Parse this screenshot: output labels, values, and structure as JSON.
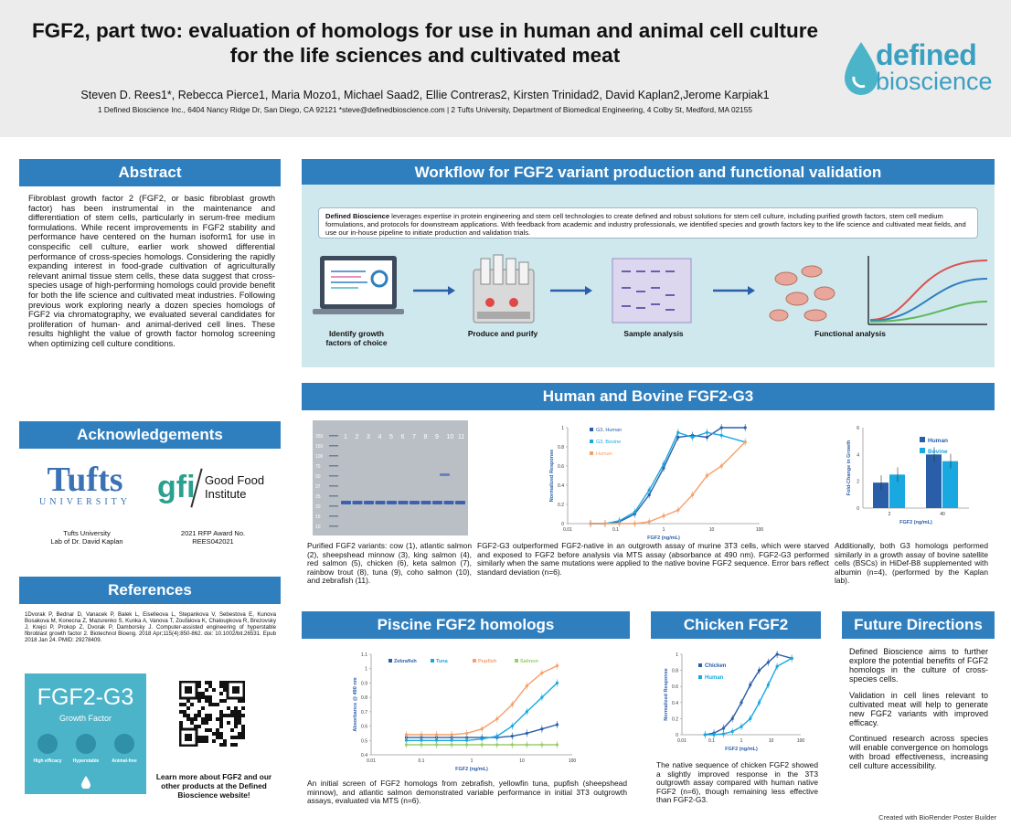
{
  "header": {
    "title": "FGF2, part two: evaluation of homologs for use in human and animal cell culture for the life sciences and cultivated meat",
    "authors": "Steven D. Rees1*, Rebecca Pierce1, Maria Mozo1, Michael Saad2, Ellie Contreras2, Kirsten Trinidad2, David Kaplan2,Jerome Karpiak1",
    "affiliations": "1 Defined Bioscience Inc., 6404 Nancy Ridge Dr, San Diego, CA 92121 *steve@definedbioscience.com   |   2 Tufts University, Department of Biomedical Engineering, 4 Colby St, Medford, MA 02155",
    "logo_line1": "defined",
    "logo_line2": "bioscience"
  },
  "abstract": {
    "heading": "Abstract",
    "text": "Fibroblast growth factor 2 (FGF2, or basic fibroblast growth factor) has been instrumental in the maintenance and differentiation of stem cells, particularly in serum-free medium formulations. While recent improvements in FGF2 stability and performance have centered on the human isoform1 for use in conspecific cell culture, earlier work showed differential performance of cross-species homologs. Considering the rapidly expanding interest in food-grade cultivation of agriculturally relevant animal tissue stem cells, these data suggest that cross-species usage of high-performing homologs could provide benefit for both the life science and cultivated meat industries. Following previous work exploring nearly a dozen species homologs of FGF2 via chromatography, we evaluated several candidates for proliferation of human- and animal-derived cell lines. These results highlight the value of growth factor homolog screening when optimizing cell culture conditions."
  },
  "acknowledgements": {
    "heading": "Acknowledgements",
    "tufts_logo": "Tufts",
    "tufts_sub": "UNIVERSITY",
    "tufts_caption": "Tufts University\nLab of Dr. David Kaplan",
    "gfi_logo": "gfi",
    "gfi_name": "Good Food\nInstitute",
    "gfi_caption": "2021 RFP Award No.\nREES042021"
  },
  "references": {
    "heading": "References",
    "text": "1Dvorak P, Bednar D, Vanacek P, Balek L, Eiselleova L, Stepankova V, Sebestova E, Kunova Bosakova M, Konecna Z, Mazurenko S, Kunka A, Vanova T, Zoufalova K, Chaloupkova R, Brezovsky J, Krejci P, Prokop Z, Dvorak P, Damborsky J. Computer-assisted engineering of hyperstable fibroblast growth factor 2. Biotechnol Bioeng. 2018 Apr;115(4):850-862. doi: 10.1002/bit.26531. Epub 2018 Jan 24. PMID: 29278409."
  },
  "product_card": {
    "name": "FGF2-G3",
    "subtitle": "Growth Factor",
    "feature1": "High efficacy",
    "feature2": "Hyperstable",
    "feature3": "Animal-free",
    "qr_text": "Learn more about FGF2 and our other products at the Defined Bioscience website!"
  },
  "workflow": {
    "heading": "Workflow for FGF2 variant production and functional validation",
    "text_bold": "Defined Bioscience",
    "text": " leverages expertise in protein engineering and stem cell technologies to create defined and robust solutions for stem cell culture, including purified growth factors, stem cell medium formulations, and protocols for downstream applications. With feedback from academic and industry professionals, we identified species and growth factors key to the life science and cultivated meat fields, and use our in-house pipeline to initiate production and validation trials.",
    "steps": [
      "Identify growth factors of choice",
      "Produce and purify",
      "Sample analysis",
      "Functional analysis"
    ]
  },
  "human_bovine": {
    "heading": "Human and Bovine FGF2-G3",
    "gel_lanes": [
      "1",
      "2",
      "3",
      "4",
      "5",
      "6",
      "7",
      "8",
      "9",
      "10",
      "11"
    ],
    "gel_markers": [
      "250",
      "150",
      "100",
      "75",
      "50",
      "37",
      "25",
      "20",
      "15",
      "10"
    ],
    "gel_caption": "Purified FGF2 variants: cow (1), atlantic salmon (2), sheepshead minnow (3), king salmon (4), red salmon (5), chicken (6), keta salmon (7), rainbow trout (8), tuna (9), coho salmon (10), and zebrafish (11).",
    "curve_caption": "FGF2-G3 outperformed FGF2-native in an outgrowth assay of murine 3T3 cells, which were starved and exposed to FGF2 before analysis via MTS assay (absorbance at 490 nm). FGF2-G3 performed similarly when the same mutations were applied to the native bovine FGF2 sequence. Error bars reflect standard deviation (n=6).",
    "bar_caption": "Additionally, both G3 homologs performed similarly in a growth assay of bovine satellite cells (BSCs) in HiDef-B8 supplemented with albumin (n=4), (performed by the Kaplan lab)."
  },
  "piscine": {
    "heading": "Piscine FGF2 homologs",
    "caption": "An initial screen of FGF2 homologs from zebrafish, yellowfin tuna, pupfish (sheepshead minnow), and atlantic salmon demonstrated variable performance in initial 3T3 outgrowth assays, evaluated via MTS (n=6)."
  },
  "chicken": {
    "heading": "Chicken FGF2",
    "caption": "The native sequence of chicken FGF2 showed a slightly improved response in the 3T3 outgrowth assay compared with human native FGF2 (n=6), though remaining less effective than FGF2-G3."
  },
  "future": {
    "heading": "Future Directions",
    "p1": "Defined Bioscience aims to further explore the potential benefits of FGF2 homologs in the culture of cross-species cells.",
    "p2": "Validation in cell lines relevant to cultivated meat will help to generate new FGF2 variants with improved efficacy.",
    "p3": "Continued research across species will enable convergence on homologs with broad effectiveness, increasing cell culture accessibility."
  },
  "credit": "Created with BioRender Poster Builder",
  "colors": {
    "header_blue": "#2f7fbf",
    "workflow_bg": "#cfe8ee",
    "teal": "#4bb4c8"
  },
  "chart_data": [
    {
      "type": "line",
      "title": "",
      "xlabel": "FGF2 (ng/mL)",
      "ylabel": "Normalized Response",
      "xscale": "log",
      "xlim": [
        0.01,
        100
      ],
      "ylim": [
        0,
        1
      ],
      "xticks": [
        "0.01",
        "0.1",
        "1",
        "10",
        "100"
      ],
      "yticks": [
        "0",
        "0.2",
        "0.4",
        "0.6",
        "0.8",
        "1"
      ],
      "legend": "top-left",
      "series": [
        {
          "name": "G3, Human",
          "color": "#2a5ea8",
          "x": [
            0.03,
            0.06,
            0.12,
            0.25,
            0.5,
            1,
            2,
            4,
            8,
            16,
            50
          ],
          "y": [
            0.0,
            0.0,
            0.02,
            0.1,
            0.3,
            0.58,
            0.9,
            0.92,
            0.9,
            1.0,
            1.0
          ]
        },
        {
          "name": "G3, Bovine",
          "color": "#19a8e0",
          "x": [
            0.03,
            0.06,
            0.12,
            0.25,
            0.5,
            1,
            2,
            4,
            8,
            16,
            50
          ],
          "y": [
            0.0,
            0.0,
            0.03,
            0.12,
            0.35,
            0.62,
            0.95,
            0.9,
            0.95,
            0.92,
            0.85
          ]
        },
        {
          "name": "Human",
          "color": "#f4a06a",
          "x": [
            0.03,
            0.06,
            0.12,
            0.25,
            0.5,
            1,
            2,
            4,
            8,
            16,
            50
          ],
          "y": [
            0.0,
            0.0,
            0.0,
            0.0,
            0.02,
            0.08,
            0.14,
            0.3,
            0.5,
            0.6,
            0.85
          ]
        }
      ]
    },
    {
      "type": "bar",
      "title": "",
      "xlabel": "FGF2 (ng/mL)",
      "ylabel": "Fold-Change in Growth",
      "categories": [
        "2",
        "40"
      ],
      "ylim": [
        0,
        6
      ],
      "yticks": [
        "0",
        "2",
        "4",
        "6"
      ],
      "legend": "top-right",
      "series": [
        {
          "name": "Human",
          "color": "#2a5ea8",
          "values": [
            1.9,
            4.0
          ]
        },
        {
          "name": "Bovine",
          "color": "#19a8e0",
          "values": [
            2.5,
            3.5
          ]
        }
      ]
    },
    {
      "type": "line",
      "title": "",
      "xlabel": "FGF2 (ng/mL)",
      "ylabel": "Absorbance @ 490 nm",
      "xscale": "log",
      "xlim": [
        0.01,
        100
      ],
      "ylim": [
        0.4,
        1.1
      ],
      "xticks": [
        "0.01",
        "0.1",
        "1",
        "10",
        "100"
      ],
      "yticks": [
        "0.4",
        "0.5",
        "0.6",
        "0.7",
        "0.8",
        "0.9",
        "1",
        "1.1"
      ],
      "legend": "top",
      "series": [
        {
          "name": "Zebrafish",
          "color": "#2a5ea8",
          "x": [
            0.05,
            0.1,
            0.2,
            0.4,
            0.8,
            1.6,
            3.2,
            6.4,
            12.5,
            25,
            50
          ],
          "y": [
            0.52,
            0.52,
            0.52,
            0.52,
            0.52,
            0.52,
            0.52,
            0.53,
            0.55,
            0.58,
            0.61
          ]
        },
        {
          "name": "Tuna",
          "color": "#19a8e0",
          "x": [
            0.05,
            0.1,
            0.2,
            0.4,
            0.8,
            1.6,
            3.2,
            6.4,
            12.5,
            25,
            50
          ],
          "y": [
            0.5,
            0.5,
            0.5,
            0.5,
            0.5,
            0.51,
            0.53,
            0.6,
            0.7,
            0.8,
            0.9
          ]
        },
        {
          "name": "Pupfish",
          "color": "#f4a06a",
          "x": [
            0.05,
            0.1,
            0.2,
            0.4,
            0.8,
            1.6,
            3.2,
            6.4,
            12.5,
            25,
            50
          ],
          "y": [
            0.54,
            0.54,
            0.54,
            0.54,
            0.55,
            0.58,
            0.65,
            0.75,
            0.88,
            0.97,
            1.02
          ]
        },
        {
          "name": "Salmon",
          "color": "#9acd6c",
          "x": [
            0.05,
            0.1,
            0.2,
            0.4,
            0.8,
            1.6,
            3.2,
            6.4,
            12.5,
            25,
            50
          ],
          "y": [
            0.47,
            0.47,
            0.47,
            0.47,
            0.47,
            0.47,
            0.47,
            0.47,
            0.47,
            0.47,
            0.47
          ]
        }
      ]
    },
    {
      "type": "line",
      "title": "",
      "xlabel": "FGF2 (ng/mL)",
      "ylabel": "Normalized Response",
      "xscale": "log",
      "xlim": [
        0.01,
        100
      ],
      "ylim": [
        0,
        1
      ],
      "xticks": [
        "0.01",
        "0.1",
        "1",
        "10",
        "100"
      ],
      "yticks": [
        "0",
        "0.2",
        "0.4",
        "0.6",
        "0.8",
        "1"
      ],
      "legend": "top-left",
      "series": [
        {
          "name": "Chicken",
          "color": "#2a5ea8",
          "x": [
            0.06,
            0.12,
            0.25,
            0.5,
            1,
            2,
            4,
            8,
            16,
            50
          ],
          "y": [
            0.0,
            0.02,
            0.08,
            0.2,
            0.4,
            0.62,
            0.8,
            0.9,
            1.0,
            0.95
          ]
        },
        {
          "name": "Human",
          "color": "#19a8e0",
          "x": [
            0.06,
            0.12,
            0.25,
            0.5,
            1,
            2,
            4,
            8,
            16,
            50
          ],
          "y": [
            0.0,
            0.0,
            0.01,
            0.04,
            0.1,
            0.2,
            0.4,
            0.62,
            0.85,
            0.95
          ]
        }
      ]
    }
  ]
}
